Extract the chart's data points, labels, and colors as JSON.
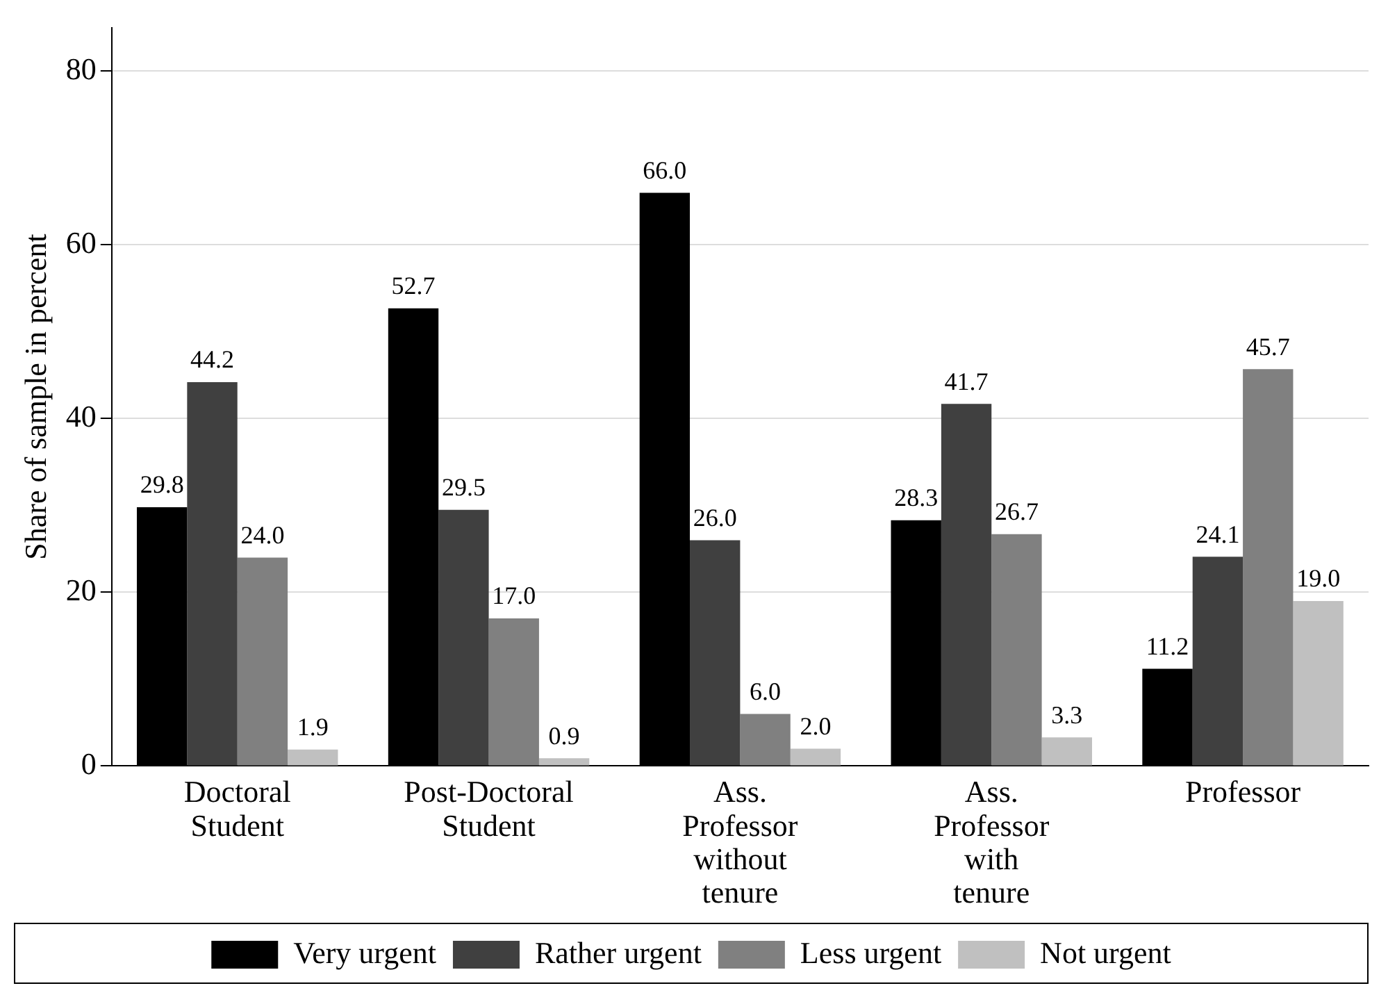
{
  "chart_data": {
    "type": "bar",
    "ylabel": "Share of sample in percent",
    "categories": [
      "Doctoral Student",
      "Post-Doctoral Student",
      "Ass. Professor without tenure",
      "Ass. Professor with tenure",
      "Professor"
    ],
    "series": [
      {
        "name": "Very urgent",
        "color": "#000000",
        "values": [
          29.8,
          52.7,
          66.0,
          28.3,
          11.2
        ],
        "value_labels": [
          "29.8",
          "52.7",
          "66.0",
          "28.3",
          "11.2"
        ]
      },
      {
        "name": "Rather urgent",
        "color": "#404040",
        "values": [
          44.2,
          29.5,
          26.0,
          41.7,
          24.1
        ],
        "value_labels": [
          "44.2",
          "29.5",
          "26.0",
          "41.7",
          "24.1"
        ]
      },
      {
        "name": "Less urgent",
        "color": "#808080",
        "values": [
          24.0,
          17.0,
          6.0,
          26.7,
          45.7
        ],
        "value_labels": [
          "24.0",
          "17.0",
          "6.0",
          "26.7",
          "45.7"
        ]
      },
      {
        "name": "Not urgent",
        "color": "#c0c0c0",
        "values": [
          1.9,
          0.9,
          2.0,
          3.3,
          19.0
        ],
        "value_labels": [
          "1.9",
          "0.9",
          "2.0",
          "3.3",
          "19.0"
        ]
      }
    ],
    "ylim": [
      0,
      85
    ],
    "yticks": [
      0,
      20,
      40,
      60,
      80
    ],
    "grid": "y",
    "legend": "bottom"
  }
}
